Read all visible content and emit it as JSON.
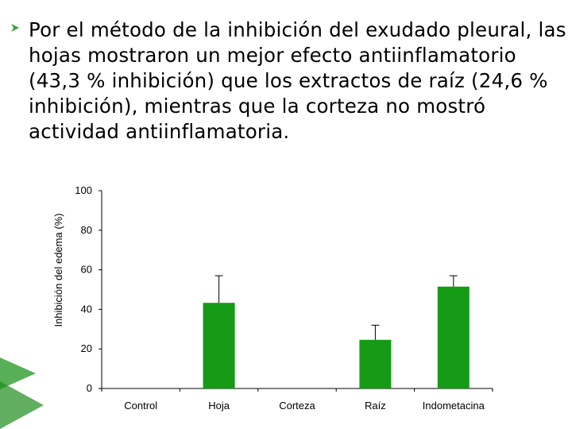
{
  "slide": {
    "bullet_text": "Por el método de la inhibición del exudado pleural, las hojas mostraron un mejor efecto antiinflamatorio (43,3 % inhibición) que los extractos de raíz (24,6 % inhibición), mientras que la corteza no mostró actividad antiinflamatoria.",
    "bullet_icon": "arrow-bullet-icon"
  },
  "colors": {
    "bar": "#159B15",
    "axis": "#000000",
    "decoration": "#3AA23A"
  },
  "chart_data": {
    "type": "bar",
    "title": "",
    "xlabel": "",
    "ylabel": "Inhibición del edema (%)",
    "ylim": [
      0,
      100
    ],
    "yticks": [
      0,
      20,
      40,
      60,
      80,
      100
    ],
    "grid": false,
    "categories": [
      "Control",
      "Hoja",
      "Corteza",
      "Raíz",
      "Indometacina"
    ],
    "values": [
      0,
      43.3,
      0,
      24.6,
      51.5
    ],
    "error_upper": [
      0,
      57,
      0,
      32,
      57
    ]
  }
}
